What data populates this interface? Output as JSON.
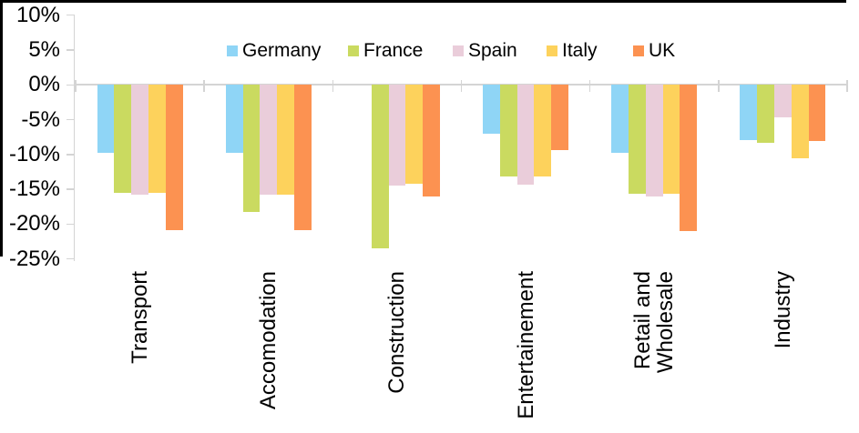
{
  "chart_data": {
    "type": "bar",
    "title": "",
    "xlabel": "",
    "ylabel": "",
    "categories": [
      "Transport",
      "Accomodation",
      "Construction",
      "Entertainement",
      "Retail and\nWholesale",
      "Industry"
    ],
    "series": [
      {
        "name": "Germany",
        "color": "#8FD5F6",
        "values": [
          -9.8,
          -9.8,
          0,
          -7.0,
          -9.8,
          -7.9
        ]
      },
      {
        "name": "France",
        "color": "#CADA60",
        "values": [
          -15.5,
          -18.3,
          -23.5,
          -13.2,
          -15.6,
          -8.3
        ]
      },
      {
        "name": "Spain",
        "color": "#EACDDA",
        "values": [
          -15.8,
          -15.8,
          -14.4,
          -14.3,
          -16.0,
          -4.7
        ]
      },
      {
        "name": "Italy",
        "color": "#FDD25C",
        "values": [
          -15.5,
          -15.8,
          -14.2,
          -13.2,
          -15.6,
          -10.5
        ]
      },
      {
        "name": "UK",
        "color": "#FC9251",
        "values": [
          -20.9,
          -20.9,
          -16.0,
          -9.4,
          -21.0,
          -8.1
        ]
      }
    ],
    "y_axis": {
      "tick_labels": [
        "10%",
        "5%",
        "0%",
        "-5%",
        "-10%",
        "-15%",
        "-20%",
        "-25%"
      ],
      "tick_values": [
        10,
        5,
        0,
        -5,
        -10,
        -15,
        -20,
        -25
      ],
      "ylim": [
        -25,
        10
      ],
      "grid": false
    },
    "legend_position": "top",
    "legend_entries": [
      "Germany",
      "France",
      "Spain",
      "Italy",
      "UK"
    ]
  },
  "colors": {
    "axis_line": "#D4D4D4",
    "background": "#FFFFFF",
    "frame_border": "#000000",
    "text": "#000000"
  }
}
